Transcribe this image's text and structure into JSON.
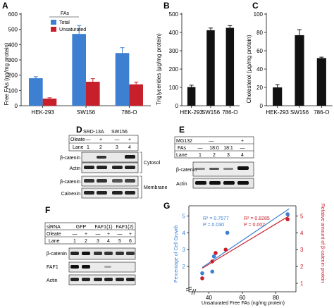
{
  "colors": {
    "total": "#3d7fd1",
    "unsaturated": "#c8202b",
    "black": "#111111",
    "blue": "#3d7fd1",
    "red": "#c8202b"
  },
  "panels": {
    "A": {
      "letter": "A",
      "ylabel": "Free FAs (ng/mg protein)",
      "legend_title": "FAs",
      "legend_total": "Total",
      "legend_unsat": "Unsaturated"
    },
    "B": {
      "letter": "B",
      "ylabel": "Triglycerides (μg/mg protein)"
    },
    "C": {
      "letter": "C",
      "ylabel": "Cholesterol (μg/mg protein)"
    },
    "D": {
      "letter": "D",
      "col1": "SRD-13A",
      "col2": "SW156",
      "oleate": "Oleate",
      "lane": "Lane",
      "minus": "—",
      "plus": "+",
      "l1": "1",
      "l2": "2",
      "l3": "3",
      "l4": "4",
      "bands": [
        "β-catenin",
        "Actin",
        "β-catenin",
        "Calnexin"
      ],
      "cytosol": "Cytosol",
      "membrane": "Membrane"
    },
    "E": {
      "letter": "E",
      "mg132": "MG132",
      "fas": "FAs",
      "lane": "Lane",
      "minus": "—",
      "plus": "+",
      "f1": "18:0",
      "f2": "18:1",
      "dash": "—",
      "l1": "1",
      "l2": "2",
      "l3": "3",
      "l4": "4",
      "bands": [
        "β-catenin",
        "Actin"
      ]
    },
    "F": {
      "letter": "F",
      "sirna": "siRNA",
      "gfp": "GFP",
      "faf1": "FAF1(1)",
      "faf2": "FAF1(2)",
      "oleate": "Oleate",
      "lane": "Lane",
      "minus": "—",
      "plus": "+",
      "lanes": [
        "1",
        "2",
        "3",
        "4",
        "5",
        "6"
      ],
      "bands": [
        "β-catenin",
        "FAF1",
        "Actin"
      ]
    },
    "G": {
      "letter": "G",
      "ylabel_left": "Percentage of Cell Growth",
      "ylabel_right": "Relative amount of β-catenin protein",
      "xlabel": "Unsaturated Free FAs (ng/mg protein)",
      "r2_blue": "R² = 0.7577",
      "p_blue": "P = 0.030",
      "r2_red": "R² = 0.8285",
      "p_red": "P = 0.002"
    }
  },
  "chart_data": [
    {
      "type": "bar",
      "panel": "A",
      "categories": [
        "HEK-293",
        "SW156",
        "786-O"
      ],
      "series": [
        {
          "name": "Total",
          "values": [
            180,
            470,
            345
          ],
          "errors": [
            10,
            55,
            35
          ]
        },
        {
          "name": "Unsaturated",
          "values": [
            47,
            157,
            140
          ],
          "errors": [
            5,
            20,
            15
          ]
        }
      ],
      "ylim": [
        0,
        600
      ],
      "yticks": [
        0,
        100,
        200,
        300,
        400,
        500,
        600
      ],
      "ylabel": "Free FAs (ng/mg protein)"
    },
    {
      "type": "bar",
      "panel": "B",
      "categories": [
        "HEK-293",
        "SW156",
        "786-O"
      ],
      "values": [
        102,
        412,
        425
      ],
      "errors": [
        10,
        12,
        12
      ],
      "ylim": [
        0,
        500
      ],
      "yticks": [
        0,
        100,
        200,
        300,
        400,
        500
      ],
      "ylabel": "Triglycerides (μg/mg protein)"
    },
    {
      "type": "bar",
      "panel": "C",
      "categories": [
        "HEK-293",
        "SW156",
        "786-O"
      ],
      "values": [
        20,
        77,
        52
      ],
      "errors": [
        3,
        6,
        1
      ],
      "ylim": [
        0,
        100
      ],
      "yticks": [
        0,
        20,
        40,
        60,
        80,
        100
      ],
      "ylabel": "Cholesterol (μg/mg protein)"
    },
    {
      "type": "scatter",
      "panel": "G",
      "xticks": [
        40,
        60,
        80
      ],
      "xlim": [
        28,
        92
      ],
      "y_left_ticks": [
        2,
        3,
        4,
        5
      ],
      "y_right_ticks": [
        1,
        2,
        3,
        4,
        5
      ],
      "ylim": [
        0.5,
        5.6
      ],
      "series": [
        {
          "name": "Percentage of Cell Growth",
          "axis": "left",
          "points": [
            [
              36,
              1.6
            ],
            [
              42,
              1.7
            ],
            [
              43,
              2.6
            ],
            [
              51,
              4.0
            ],
            [
              87,
              5.1
            ]
          ]
        },
        {
          "name": "Relative amount of β-catenin protein",
          "axis": "right",
          "points": [
            [
              36,
              1.3
            ],
            [
              42,
              2.3
            ],
            [
              44,
              2.8
            ],
            [
              50,
              3.0
            ],
            [
              87,
              4.8
            ]
          ]
        }
      ]
    }
  ]
}
